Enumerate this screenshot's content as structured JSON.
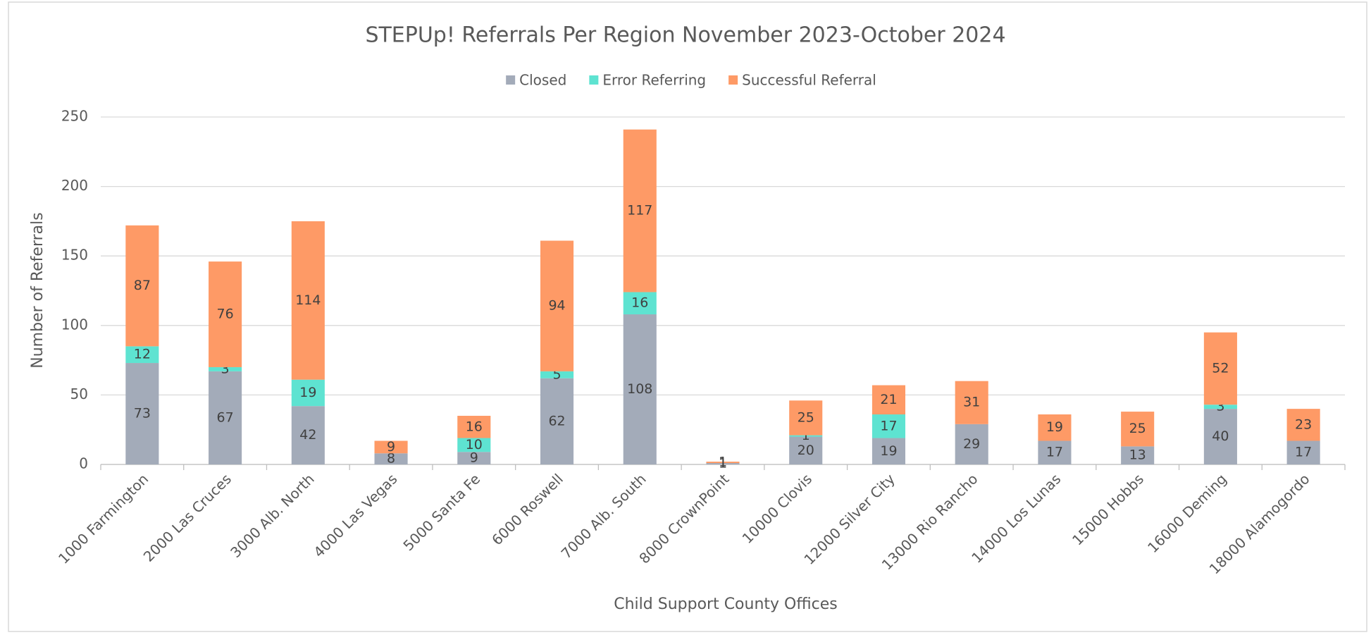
{
  "chart_data": {
    "type": "stacked_bar",
    "title": "STEPUp! Referrals Per Region November 2023-October 2024",
    "x_label": "Child Support County Offices",
    "y_label": "Number of Referrals",
    "categories": [
      "1000 Farmington",
      "2000 Las Cruces",
      "3000 Alb. North",
      "4000 Las Vegas",
      "5000 Santa Fe",
      "6000 Roswell",
      "7000 Alb. South",
      "8000 CrownPoint",
      "10000 Clovis",
      "12000 Silver City",
      "13000 Rio Rancho",
      "14000 Los Lunas",
      "15000 Hobbs",
      "16000 Deming",
      "18000 Alamogordo"
    ],
    "series": [
      {
        "name": "Closed",
        "color": "#a3abb9",
        "values": [
          73,
          67,
          42,
          8,
          9,
          62,
          108,
          1,
          20,
          19,
          29,
          17,
          13,
          40,
          17
        ]
      },
      {
        "name": "Error Referring",
        "color": "#5ee3d1",
        "values": [
          12,
          3,
          19,
          null,
          10,
          5,
          16,
          null,
          1,
          17,
          null,
          null,
          null,
          3,
          null
        ]
      },
      {
        "name": "Successful Referral",
        "color": "#fe9a66",
        "values": [
          87,
          76,
          114,
          9,
          16,
          94,
          117,
          1,
          25,
          21,
          31,
          19,
          25,
          52,
          23
        ]
      }
    ],
    "ylim": [
      0,
      250
    ],
    "yticks": [
      0,
      50,
      100,
      150,
      200,
      250
    ],
    "grid": true,
    "legend": "top"
  }
}
